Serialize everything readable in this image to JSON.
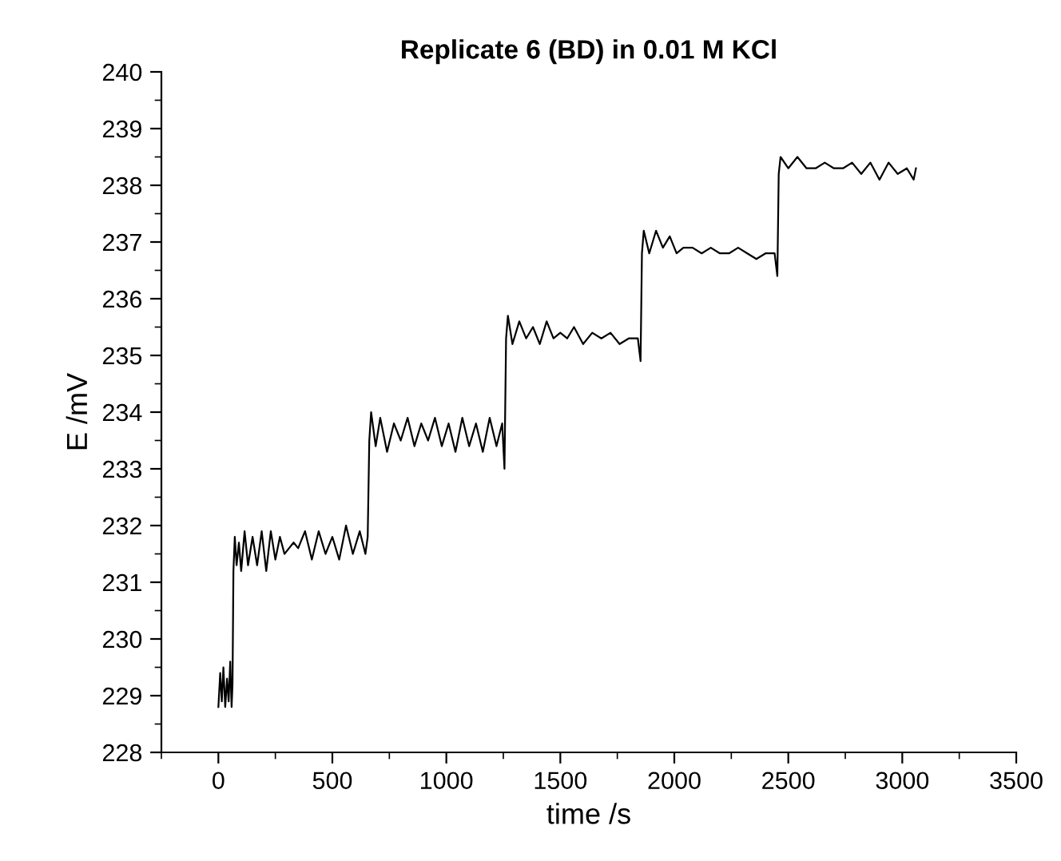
{
  "chart_data": {
    "type": "line",
    "title": "Replicate 6 (BD) in 0.01 M KCl",
    "xlabel": "time /s",
    "ylabel": "E /mV",
    "xlim": [
      -250,
      3500
    ],
    "xticks": [
      0,
      500,
      1000,
      1500,
      2000,
      2500,
      3000,
      3500
    ],
    "ylim": [
      228,
      240
    ],
    "yticks": [
      228,
      229,
      230,
      231,
      232,
      233,
      234,
      235,
      236,
      237,
      238,
      239,
      240
    ],
    "grid": false,
    "legend": false,
    "marker": "none",
    "line_style": "solid",
    "series": [
      {
        "color": "#000000",
        "x": [
          0,
          8,
          15,
          22,
          30,
          38,
          45,
          52,
          58,
          62,
          66,
          72,
          80,
          90,
          100,
          115,
          130,
          150,
          170,
          190,
          210,
          230,
          250,
          270,
          290,
          310,
          330,
          350,
          380,
          410,
          440,
          470,
          500,
          530,
          560,
          590,
          620,
          645,
          655,
          662,
          670,
          690,
          710,
          740,
          770,
          800,
          830,
          860,
          890,
          920,
          950,
          980,
          1010,
          1040,
          1070,
          1100,
          1130,
          1160,
          1190,
          1220,
          1245,
          1255,
          1262,
          1270,
          1290,
          1320,
          1350,
          1380,
          1410,
          1440,
          1470,
          1500,
          1530,
          1560,
          1600,
          1640,
          1680,
          1720,
          1760,
          1800,
          1840,
          1852,
          1858,
          1866,
          1890,
          1920,
          1950,
          1980,
          2010,
          2040,
          2080,
          2120,
          2160,
          2200,
          2240,
          2280,
          2320,
          2360,
          2400,
          2440,
          2452,
          2458,
          2466,
          2500,
          2540,
          2580,
          2620,
          2660,
          2700,
          2740,
          2780,
          2820,
          2860,
          2900,
          2940,
          2980,
          3020,
          3050,
          3060
        ],
        "values": [
          228.8,
          229.4,
          228.9,
          229.5,
          228.8,
          229.3,
          228.9,
          229.6,
          228.8,
          229.2,
          231.2,
          231.8,
          231.3,
          231.7,
          231.2,
          231.9,
          231.3,
          231.8,
          231.3,
          231.9,
          231.2,
          231.9,
          231.4,
          231.8,
          231.5,
          231.6,
          231.7,
          231.6,
          231.9,
          231.4,
          231.9,
          231.5,
          231.8,
          231.4,
          232.0,
          231.5,
          231.9,
          231.5,
          231.8,
          233.5,
          234.0,
          233.4,
          233.9,
          233.3,
          233.8,
          233.5,
          233.9,
          233.4,
          233.8,
          233.5,
          233.9,
          233.4,
          233.8,
          233.3,
          233.9,
          233.4,
          233.8,
          233.3,
          233.9,
          233.4,
          233.8,
          233.0,
          235.3,
          235.7,
          235.2,
          235.6,
          235.3,
          235.5,
          235.2,
          235.6,
          235.3,
          235.4,
          235.3,
          235.5,
          235.2,
          235.4,
          235.3,
          235.4,
          235.2,
          235.3,
          235.3,
          234.9,
          236.8,
          237.2,
          236.8,
          237.2,
          236.9,
          237.1,
          236.8,
          236.9,
          236.9,
          236.8,
          236.9,
          236.8,
          236.8,
          236.9,
          236.8,
          236.7,
          236.8,
          236.8,
          236.4,
          238.2,
          238.5,
          238.3,
          238.5,
          238.3,
          238.3,
          238.4,
          238.3,
          238.3,
          238.4,
          238.2,
          238.4,
          238.1,
          238.4,
          238.2,
          238.3,
          238.1,
          238.3
        ]
      }
    ]
  }
}
